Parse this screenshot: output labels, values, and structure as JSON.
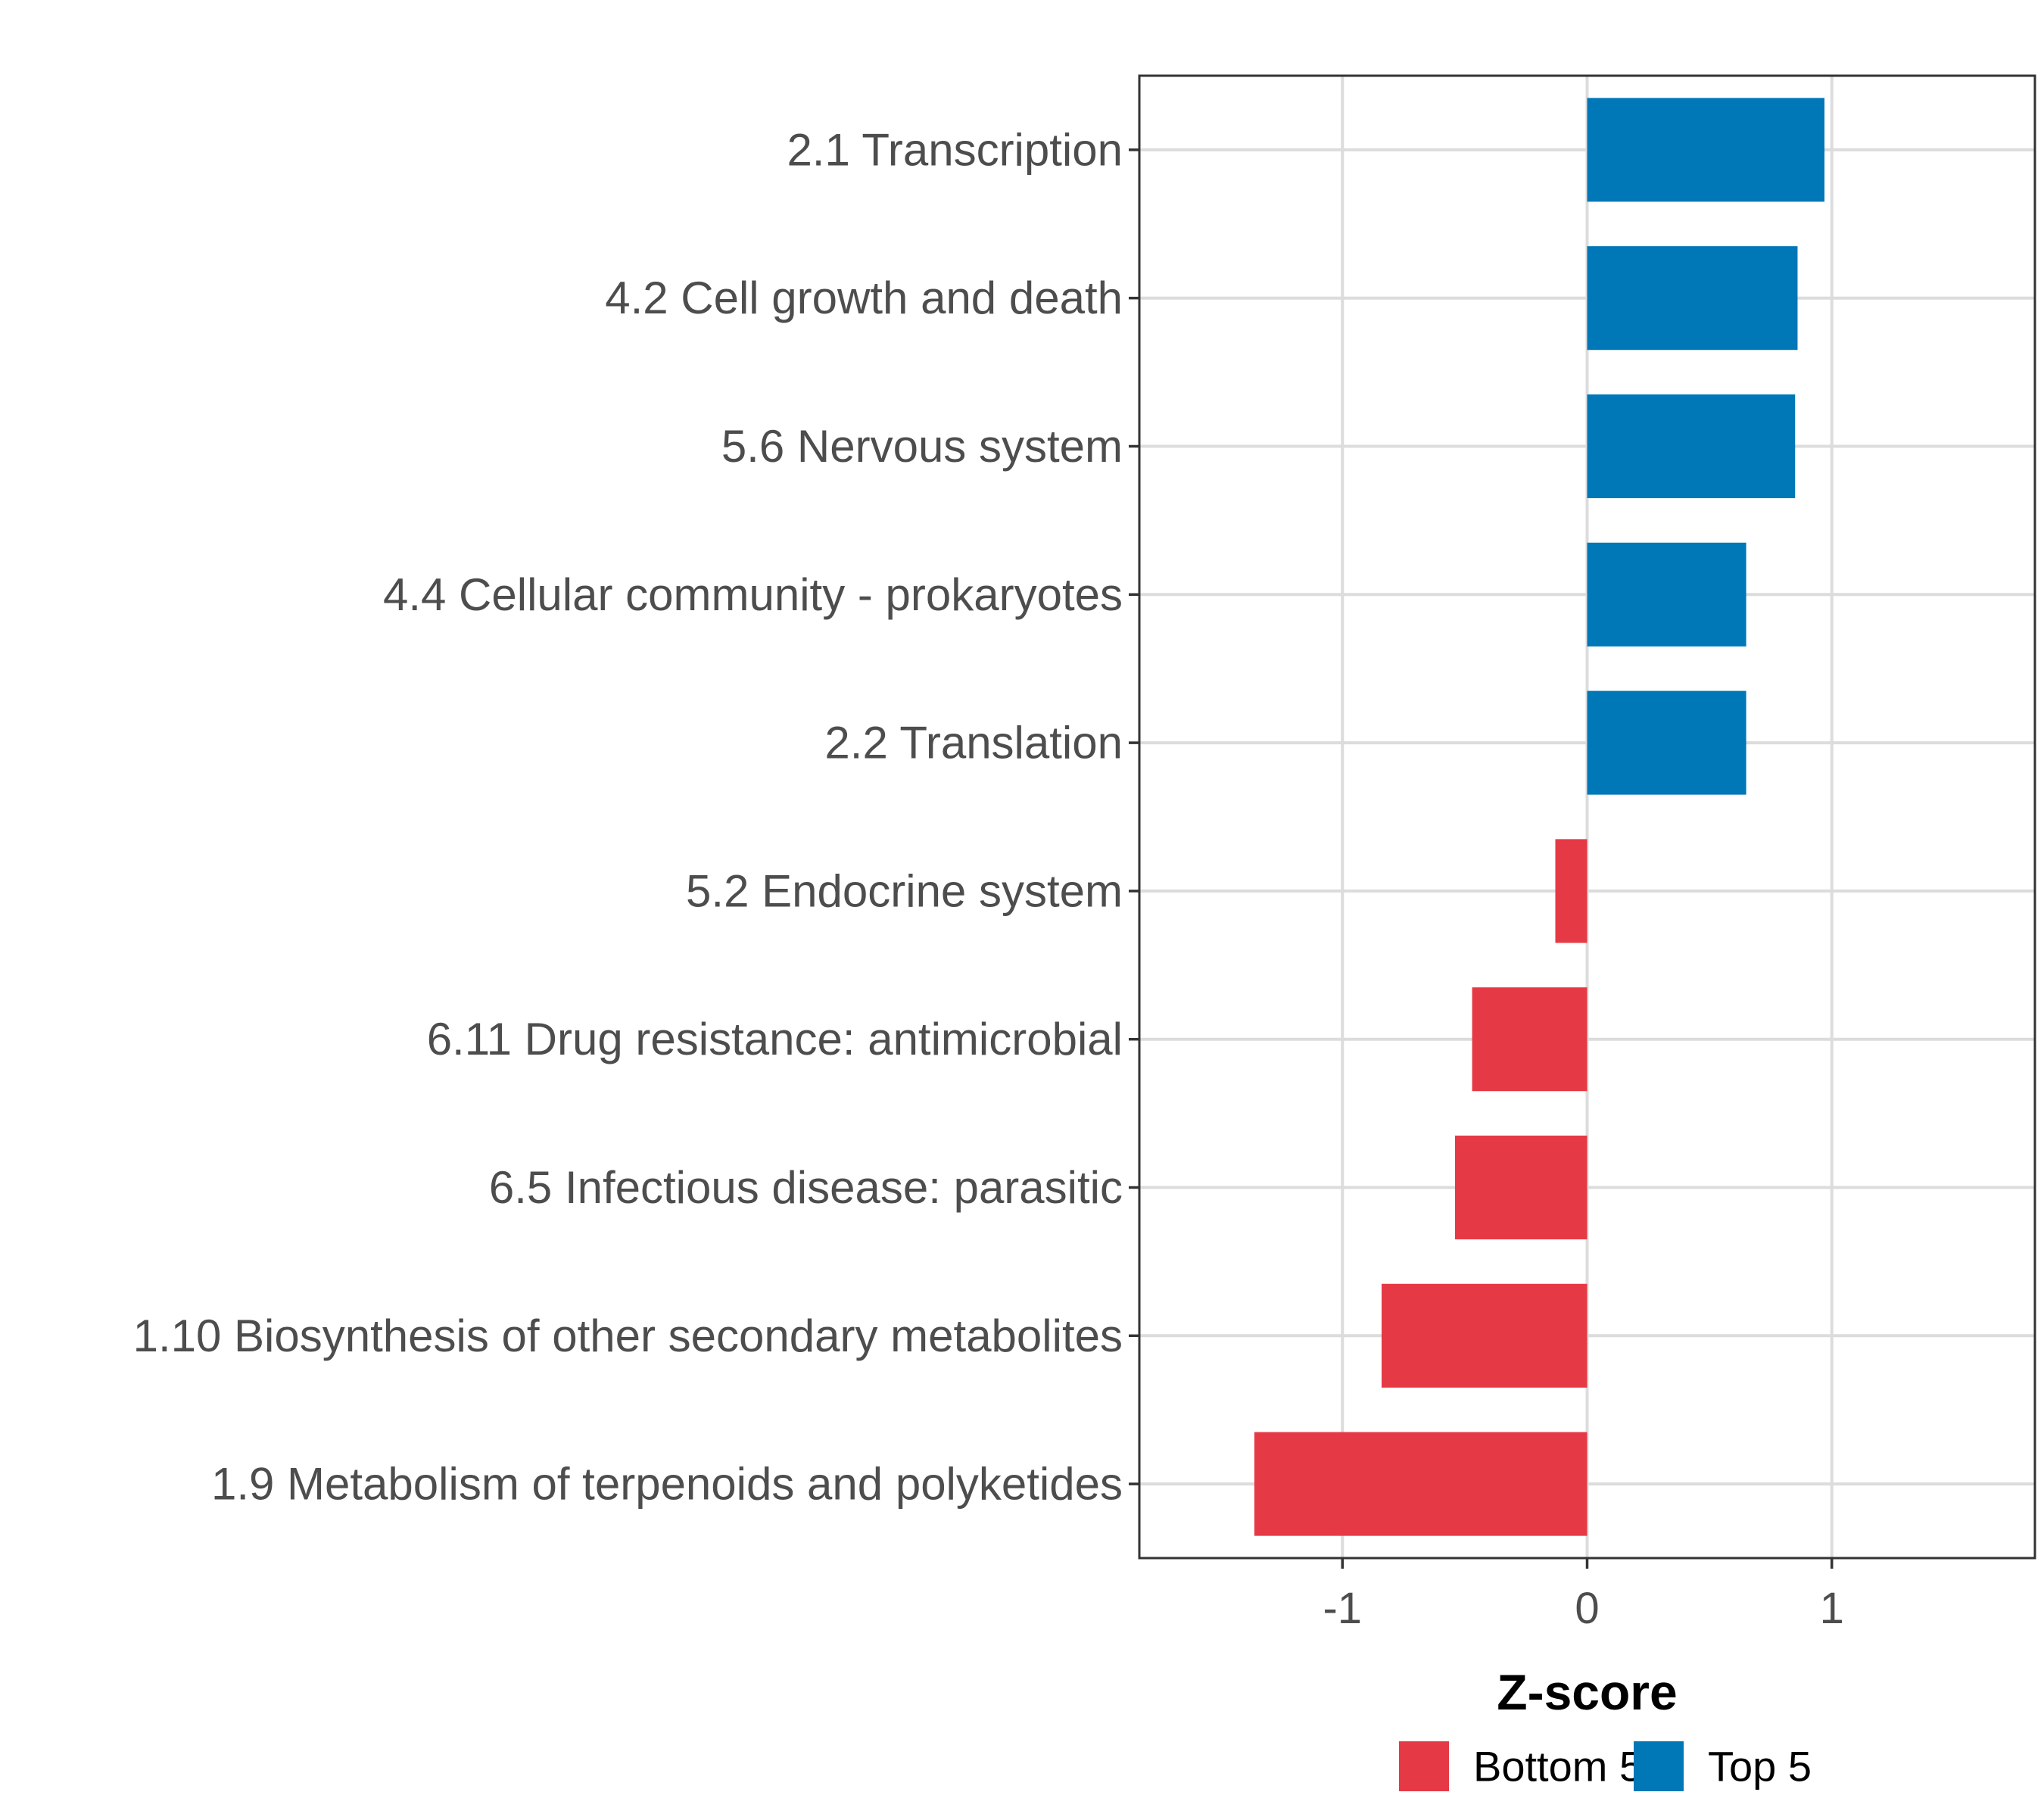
{
  "chart_data": {
    "type": "bar",
    "orientation": "horizontal",
    "title": "",
    "xlabel": "Z-score",
    "ylabel": "",
    "xlim": [
      -1.83,
      1.83
    ],
    "xticks": [
      -1,
      0,
      1
    ],
    "xtick_labels": [
      "-1",
      "0",
      "1"
    ],
    "grid": true,
    "legend_position": "bottom",
    "categories": [
      "2.1 Transcription",
      "4.2 Cell growth and death",
      "5.6 Nervous system",
      "4.4 Cellular community - prokaryotes",
      "2.2 Translation",
      "5.2 Endocrine system",
      "6.11 Drug resistance: antimicrobial",
      "6.5 Infectious disease: parasitic",
      "1.10 Biosynthesis of other secondary metabolites",
      "1.9 Metabolism of terpenoids and polyketides"
    ],
    "values": [
      0.97,
      0.86,
      0.85,
      0.65,
      0.65,
      -0.13,
      -0.47,
      -0.54,
      -0.84,
      -1.36
    ],
    "groups": [
      "Top 5",
      "Top 5",
      "Top 5",
      "Top 5",
      "Top 5",
      "Bottom 5",
      "Bottom 5",
      "Bottom 5",
      "Bottom 5",
      "Bottom 5"
    ],
    "legend": [
      {
        "label": "Bottom 5",
        "color": "#e63946"
      },
      {
        "label": "Top 5",
        "color": "#0077b6"
      }
    ]
  }
}
